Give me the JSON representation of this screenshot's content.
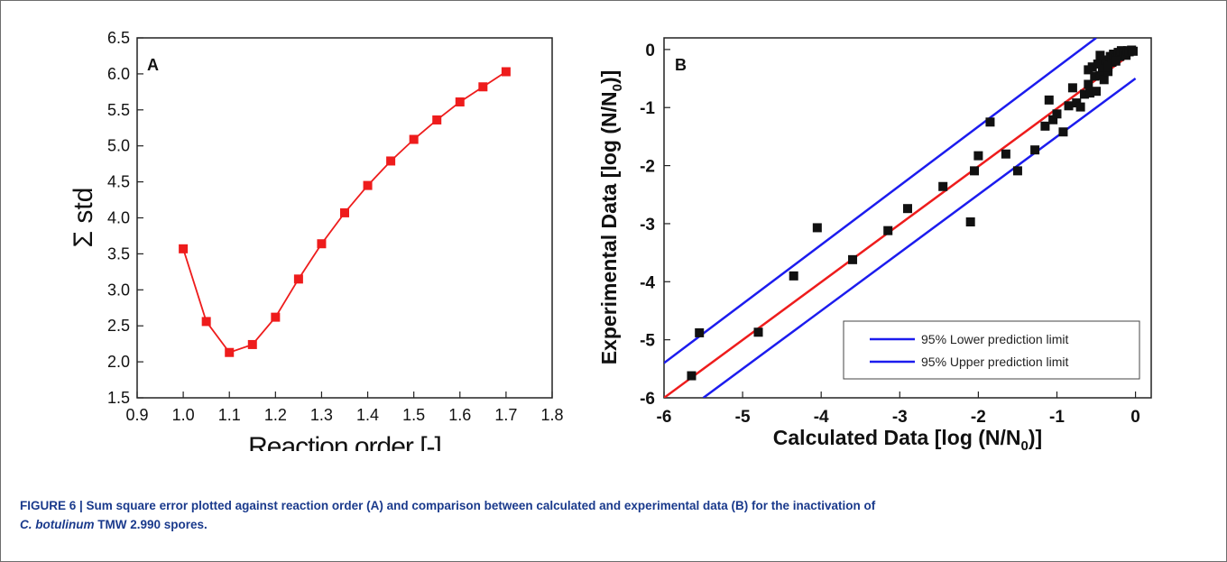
{
  "chart_data": [
    {
      "type": "line",
      "panel_label": "A",
      "xlabel": "Reaction order [-]",
      "ylabel": "Σ std",
      "xlim": [
        0.9,
        1.8
      ],
      "ylim": [
        1.5,
        6.5
      ],
      "xticks": [
        "0.9",
        "1.0",
        "1.1",
        "1.2",
        "1.3",
        "1.4",
        "1.5",
        "1.6",
        "1.7",
        "1.8"
      ],
      "yticks": [
        "1.5",
        "2.0",
        "2.5",
        "3.0",
        "3.5",
        "4.0",
        "4.5",
        "5.0",
        "5.5",
        "6.0",
        "6.5"
      ],
      "series": [
        {
          "color": "#ee1c1c",
          "marker": "square",
          "x": [
            1.0,
            1.05,
            1.1,
            1.15,
            1.2,
            1.25,
            1.3,
            1.35,
            1.4,
            1.45,
            1.5,
            1.55,
            1.6,
            1.65,
            1.7
          ],
          "y": [
            3.57,
            2.56,
            2.13,
            2.24,
            2.62,
            3.15,
            3.64,
            4.07,
            4.45,
            4.79,
            5.09,
            5.36,
            5.61,
            5.82,
            6.03
          ]
        }
      ],
      "grid": false
    },
    {
      "type": "scatter",
      "panel_label": "B",
      "xlabel": "Calculated Data [log (N/N",
      "xlabel_sub": "0",
      "xlabel_end": ")]",
      "ylabel": "Experimental Data [log (N/N",
      "ylabel_sub": "0",
      "ylabel_end": ")]",
      "xlim": [
        -6,
        0.2
      ],
      "ylim": [
        -6,
        0.2
      ],
      "xticks": [
        "-6",
        "-5",
        "-4",
        "-3",
        "-2",
        "-1",
        "0"
      ],
      "yticks": [
        "-6",
        "-5",
        "-4",
        "-3",
        "-2",
        "-1",
        "0"
      ],
      "points": {
        "color": "#111111",
        "marker": "square",
        "x": [
          -5.65,
          -5.55,
          -4.8,
          -4.35,
          -4.05,
          -3.6,
          -3.15,
          -2.9,
          -2.45,
          -2.1,
          -2.05,
          -2.0,
          -1.85,
          -1.65,
          -1.5,
          -1.28,
          -1.15,
          -1.1,
          -1.05,
          -1.0,
          -0.92,
          -0.85,
          -0.8,
          -0.75,
          -0.7,
          -0.65,
          -0.6,
          -0.58,
          -0.55,
          -0.52,
          -0.5,
          -0.48,
          -0.45,
          -0.42,
          -0.4,
          -0.38,
          -0.35,
          -0.32,
          -0.3,
          -0.28,
          -0.25,
          -0.22,
          -0.2,
          -0.18,
          -0.15,
          -0.12,
          -0.1,
          -0.08,
          -0.05,
          -0.03,
          -0.6,
          -0.45,
          -0.35,
          -0.25
        ],
        "y": [
          -5.62,
          -4.88,
          -4.87,
          -3.9,
          -3.07,
          -3.62,
          -3.12,
          -2.74,
          -2.36,
          -2.97,
          -2.09,
          -1.83,
          -1.25,
          -1.8,
          -2.09,
          -1.73,
          -1.32,
          -0.87,
          -1.21,
          -1.11,
          -1.42,
          -0.97,
          -0.66,
          -0.92,
          -0.99,
          -0.77,
          -0.6,
          -0.75,
          -0.3,
          -0.46,
          -0.72,
          -0.25,
          -0.45,
          -0.3,
          -0.52,
          -0.18,
          -0.38,
          -0.12,
          -0.22,
          -0.08,
          -0.15,
          -0.05,
          -0.12,
          -0.02,
          -0.06,
          -0.1,
          -0.02,
          -0.04,
          -0.01,
          -0.03,
          -0.35,
          -0.1,
          -0.3,
          -0.2
        ]
      },
      "lines": [
        {
          "role": "fit",
          "color": "#ee1c1c",
          "x": [
            -6,
            0
          ],
          "y": [
            -6,
            -0.02
          ]
        },
        {
          "role": "upper",
          "color": "#1c1cee",
          "x": [
            -6,
            -0.5
          ],
          "y": [
            -5.4,
            0.2
          ]
        },
        {
          "role": "lower",
          "color": "#1c1cee",
          "x": [
            -5.5,
            0
          ],
          "y": [
            -6,
            -0.5
          ]
        }
      ],
      "legend": {
        "placement": "bottom-right",
        "entries": [
          {
            "label": "95% Lower prediction limit",
            "color": "#1c1cee"
          },
          {
            "label": "95% Upper prediction limit",
            "color": "#1c1cee"
          }
        ]
      },
      "grid": false
    }
  ],
  "caption": {
    "lead": "FIGURE 6 | Sum square error plotted against reaction order (A) and comparison between calculated and experimental data (B) for the inactivation of",
    "species": "C. botulinum",
    "rest": " TMW 2.990 spores."
  }
}
